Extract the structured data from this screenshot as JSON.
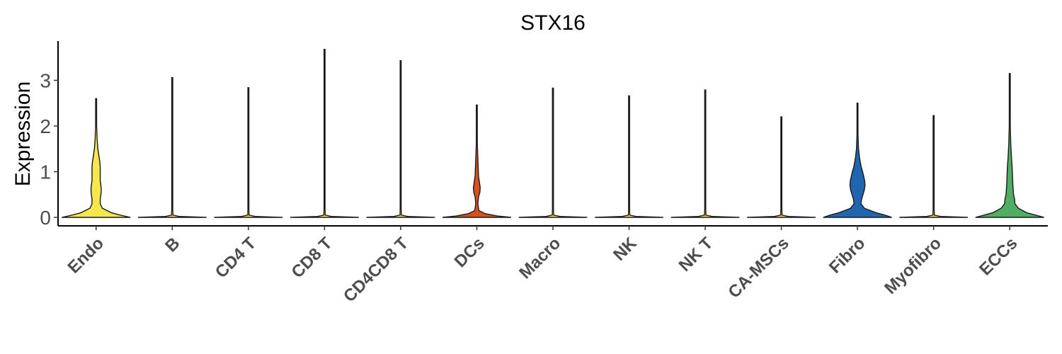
{
  "chart_data": {
    "type": "violin",
    "title": "STX16",
    "xlabel": "",
    "ylabel": "Expression",
    "ylim": [
      -0.2,
      3.85
    ],
    "yticks": [
      0,
      1,
      2,
      3
    ],
    "grid": false,
    "legend": "none",
    "categories": [
      "Endo",
      "B",
      "CD4 T",
      "CD8 T",
      "CD4CD8 T",
      "DCs",
      "Macro",
      "NK",
      "NK T",
      "CA-MSCs",
      "Fibro",
      "Myofibro",
      "ECCs"
    ],
    "series": [
      {
        "category": "Endo",
        "color": "#F5E84F",
        "max": 2.6,
        "density": [
          [
            0,
            1.0
          ],
          [
            0.05,
            0.7
          ],
          [
            0.1,
            0.45
          ],
          [
            0.2,
            0.18
          ],
          [
            0.3,
            0.12
          ],
          [
            0.4,
            0.12
          ],
          [
            0.5,
            0.14
          ],
          [
            0.6,
            0.15
          ],
          [
            0.7,
            0.14
          ],
          [
            0.8,
            0.12
          ],
          [
            0.9,
            0.12
          ],
          [
            1.0,
            0.12
          ],
          [
            1.1,
            0.12
          ],
          [
            1.2,
            0.11
          ],
          [
            1.3,
            0.09
          ],
          [
            1.5,
            0.05
          ],
          [
            1.7,
            0.03
          ],
          [
            2.0,
            0.015
          ],
          [
            2.3,
            0.008
          ],
          [
            2.6,
            0.0
          ]
        ]
      },
      {
        "category": "B",
        "color": "#F5E84F",
        "max": 3.06,
        "density": [
          [
            0,
            1.0
          ],
          [
            0.02,
            0.2
          ],
          [
            0.05,
            0.02
          ],
          [
            0.2,
            0.008
          ],
          [
            1.0,
            0.006
          ],
          [
            2.0,
            0.005
          ],
          [
            3.06,
            0.0
          ]
        ]
      },
      {
        "category": "CD4 T",
        "color": "#F5E84F",
        "max": 2.84,
        "density": [
          [
            0,
            1.0
          ],
          [
            0.02,
            0.2
          ],
          [
            0.05,
            0.02
          ],
          [
            0.2,
            0.008
          ],
          [
            1.0,
            0.006
          ],
          [
            2.0,
            0.005
          ],
          [
            2.84,
            0.0
          ]
        ]
      },
      {
        "category": "CD8 T",
        "color": "#F5E84F",
        "max": 3.68,
        "density": [
          [
            0,
            1.0
          ],
          [
            0.02,
            0.2
          ],
          [
            0.05,
            0.02
          ],
          [
            0.2,
            0.008
          ],
          [
            1.0,
            0.006
          ],
          [
            2.0,
            0.005
          ],
          [
            3.68,
            0.0
          ]
        ]
      },
      {
        "category": "CD4CD8 T",
        "color": "#F5E84F",
        "max": 3.43,
        "density": [
          [
            0,
            1.0
          ],
          [
            0.02,
            0.2
          ],
          [
            0.05,
            0.02
          ],
          [
            0.2,
            0.008
          ],
          [
            1.0,
            0.006
          ],
          [
            2.0,
            0.005
          ],
          [
            3.43,
            0.0
          ]
        ]
      },
      {
        "category": "DCs",
        "color": "#D8511D",
        "max": 2.46,
        "density": [
          [
            0,
            1.0
          ],
          [
            0.03,
            0.6
          ],
          [
            0.08,
            0.25
          ],
          [
            0.15,
            0.06
          ],
          [
            0.3,
            0.03
          ],
          [
            0.45,
            0.05
          ],
          [
            0.55,
            0.09
          ],
          [
            0.65,
            0.1
          ],
          [
            0.75,
            0.08
          ],
          [
            0.9,
            0.05
          ],
          [
            1.1,
            0.04
          ],
          [
            1.3,
            0.03
          ],
          [
            1.6,
            0.015
          ],
          [
            2.0,
            0.008
          ],
          [
            2.46,
            0.0
          ]
        ]
      },
      {
        "category": "Macro",
        "color": "#F5E84F",
        "max": 2.83,
        "density": [
          [
            0,
            1.0
          ],
          [
            0.02,
            0.2
          ],
          [
            0.05,
            0.02
          ],
          [
            0.2,
            0.008
          ],
          [
            1.0,
            0.006
          ],
          [
            2.0,
            0.005
          ],
          [
            2.83,
            0.0
          ]
        ]
      },
      {
        "category": "NK",
        "color": "#F5E84F",
        "max": 2.66,
        "density": [
          [
            0,
            1.0
          ],
          [
            0.02,
            0.2
          ],
          [
            0.05,
            0.02
          ],
          [
            0.2,
            0.008
          ],
          [
            1.0,
            0.006
          ],
          [
            2.0,
            0.005
          ],
          [
            2.66,
            0.0
          ]
        ]
      },
      {
        "category": "NK T",
        "color": "#F5E84F",
        "max": 2.79,
        "density": [
          [
            0,
            1.0
          ],
          [
            0.02,
            0.2
          ],
          [
            0.05,
            0.02
          ],
          [
            0.2,
            0.008
          ],
          [
            1.0,
            0.006
          ],
          [
            2.0,
            0.005
          ],
          [
            2.79,
            0.0
          ]
        ]
      },
      {
        "category": "CA-MSCs",
        "color": "#F5E84F",
        "max": 2.2,
        "density": [
          [
            0,
            1.0
          ],
          [
            0.02,
            0.2
          ],
          [
            0.05,
            0.02
          ],
          [
            0.2,
            0.008
          ],
          [
            1.0,
            0.006
          ],
          [
            2.0,
            0.005
          ],
          [
            2.2,
            0.0
          ]
        ]
      },
      {
        "category": "Fibro",
        "color": "#1F65B0",
        "max": 2.5,
        "density": [
          [
            0,
            1.0
          ],
          [
            0.05,
            0.8
          ],
          [
            0.1,
            0.55
          ],
          [
            0.2,
            0.2
          ],
          [
            0.3,
            0.1
          ],
          [
            0.4,
            0.12
          ],
          [
            0.5,
            0.16
          ],
          [
            0.6,
            0.2
          ],
          [
            0.7,
            0.22
          ],
          [
            0.8,
            0.21
          ],
          [
            0.9,
            0.18
          ],
          [
            1.0,
            0.15
          ],
          [
            1.1,
            0.11
          ],
          [
            1.3,
            0.06
          ],
          [
            1.5,
            0.03
          ],
          [
            1.8,
            0.015
          ],
          [
            2.1,
            0.008
          ],
          [
            2.5,
            0.0
          ]
        ]
      },
      {
        "category": "Myofibro",
        "color": "#F5E84F",
        "max": 2.23,
        "density": [
          [
            0,
            1.0
          ],
          [
            0.02,
            0.2
          ],
          [
            0.05,
            0.02
          ],
          [
            0.2,
            0.008
          ],
          [
            1.0,
            0.006
          ],
          [
            2.0,
            0.005
          ],
          [
            2.23,
            0.0
          ]
        ]
      },
      {
        "category": "ECCs",
        "color": "#4FAE62",
        "max": 3.15,
        "density": [
          [
            0,
            1.0
          ],
          [
            0.05,
            0.75
          ],
          [
            0.1,
            0.5
          ],
          [
            0.2,
            0.25
          ],
          [
            0.3,
            0.15
          ],
          [
            0.4,
            0.14
          ],
          [
            0.5,
            0.11
          ],
          [
            0.7,
            0.09
          ],
          [
            0.9,
            0.08
          ],
          [
            1.1,
            0.07
          ],
          [
            1.3,
            0.05
          ],
          [
            1.6,
            0.03
          ],
          [
            2.0,
            0.015
          ],
          [
            2.5,
            0.008
          ],
          [
            3.15,
            0.0
          ]
        ]
      }
    ]
  }
}
